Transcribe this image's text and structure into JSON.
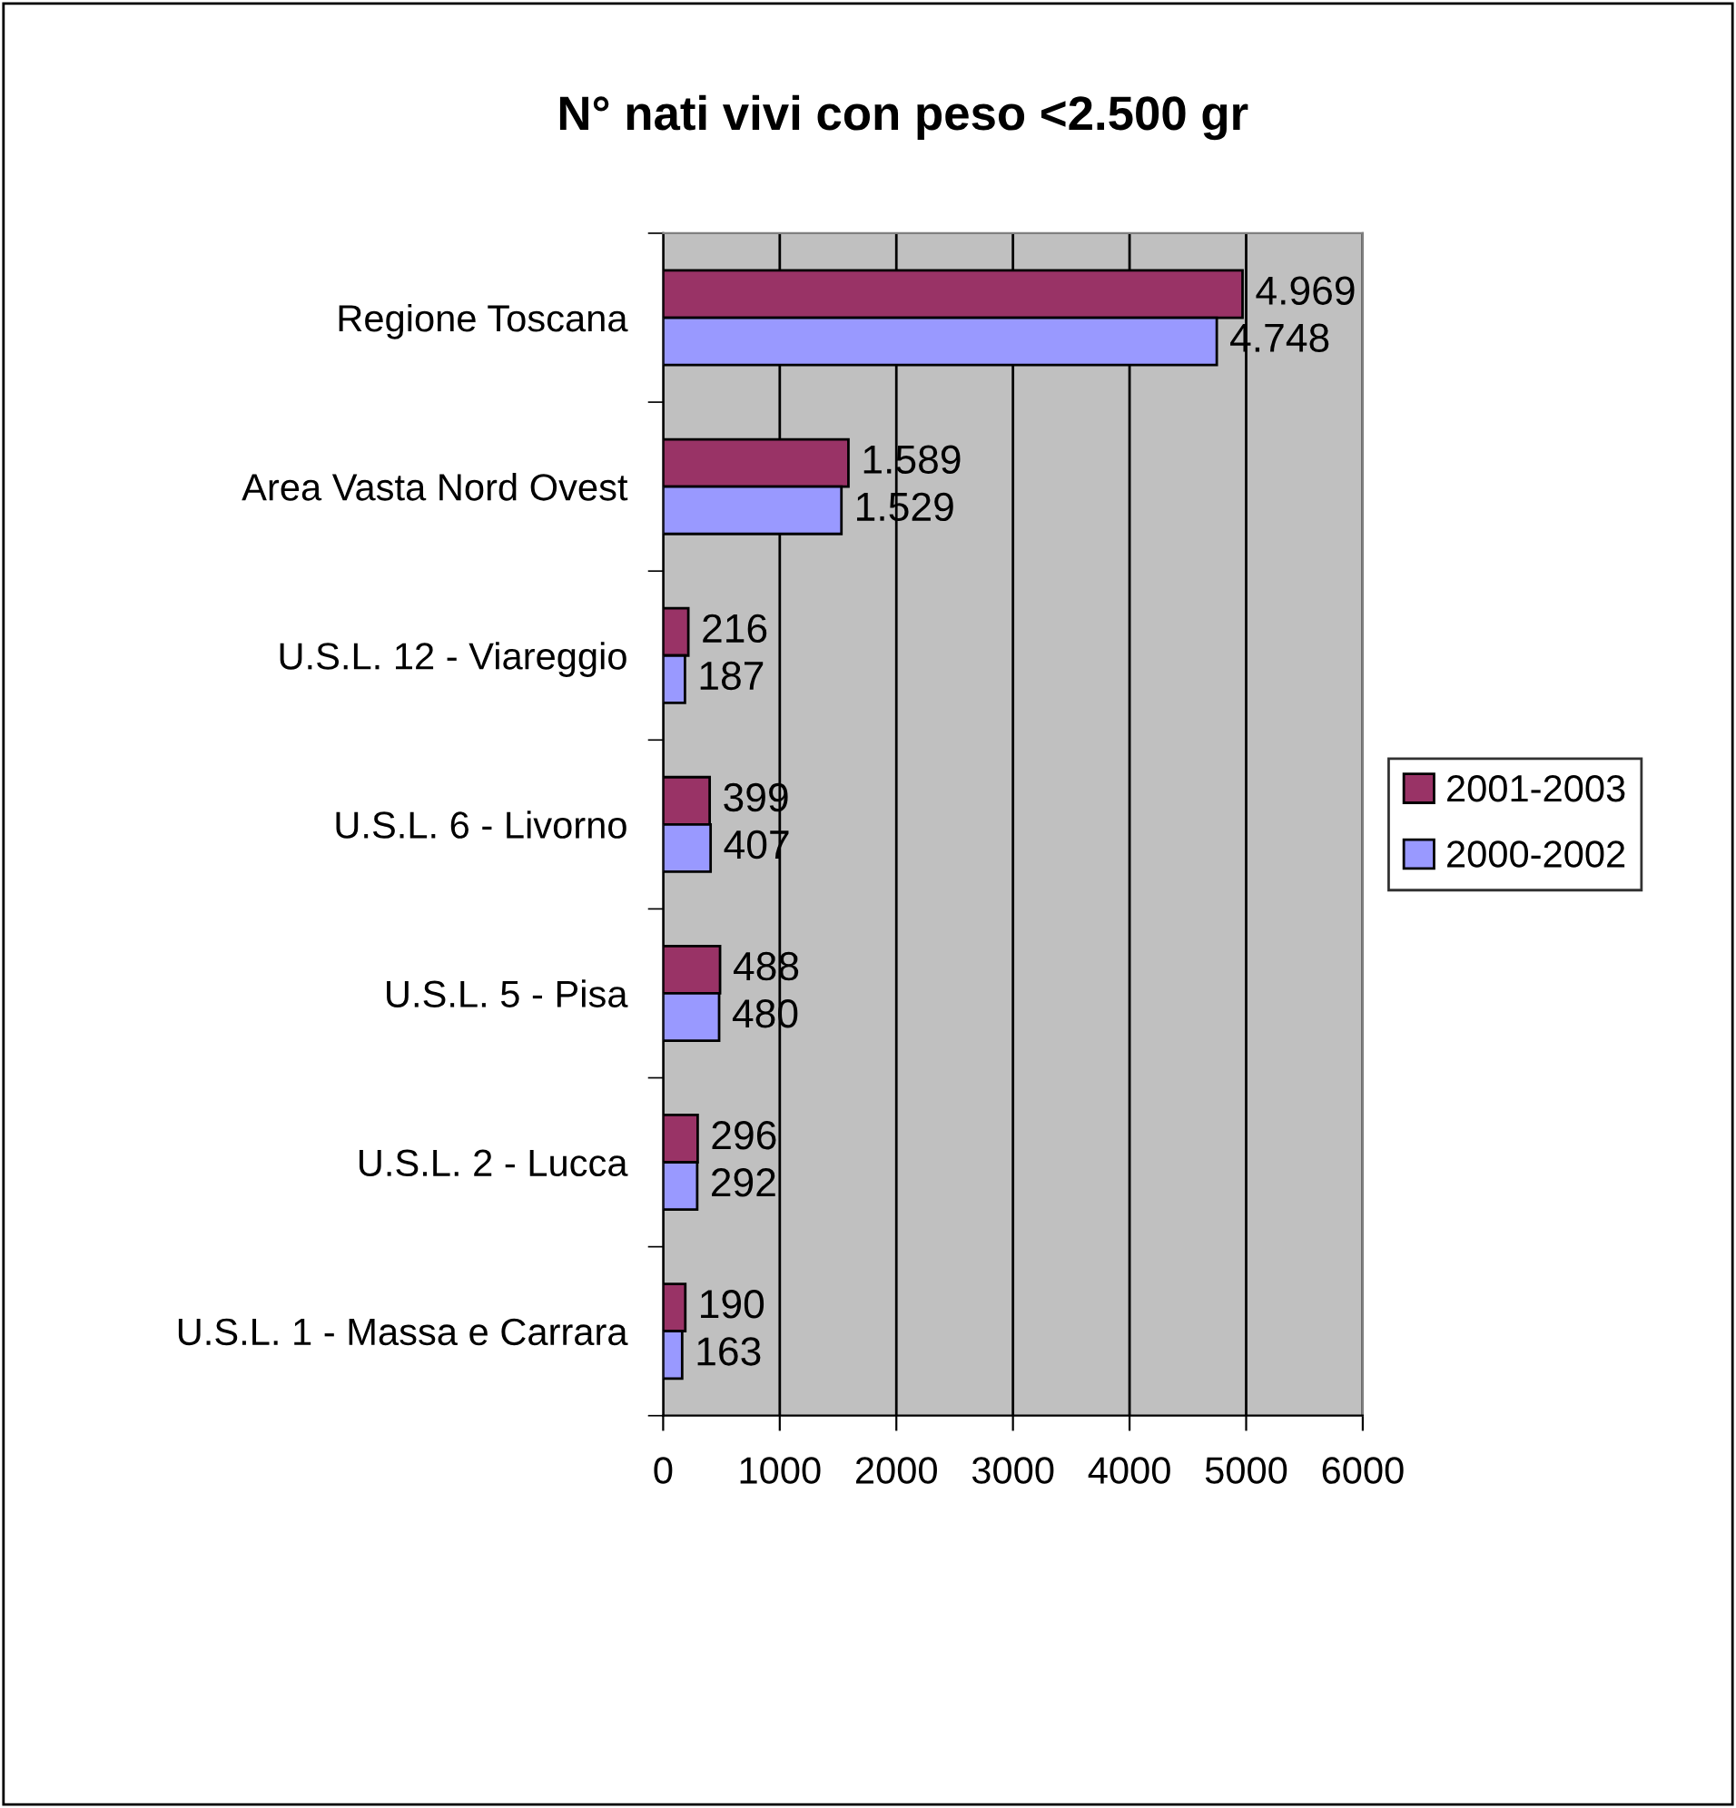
{
  "chart_data": {
    "type": "bar",
    "orientation": "horizontal",
    "title": "N° nati vivi con peso <2.500 gr",
    "categories": [
      "Regione Toscana",
      "Area Vasta Nord Ovest",
      "U.S.L. 12 - Viareggio",
      "U.S.L. 6 - Livorno",
      "U.S.L. 5 - Pisa",
      "U.S.L. 2 - Lucca",
      "U.S.L. 1 - Massa e Carrara"
    ],
    "series": [
      {
        "name": "2001-2003",
        "color": "#993366",
        "values": [
          4969,
          1589,
          216,
          399,
          488,
          296,
          190
        ],
        "value_labels": [
          "4.969",
          "1.589",
          "216",
          "399",
          "488",
          "296",
          "190"
        ]
      },
      {
        "name": "2000-2002",
        "color": "#9999ff",
        "values": [
          4748,
          1529,
          187,
          407,
          480,
          292,
          163
        ],
        "value_labels": [
          "4.748",
          "1.529",
          "187",
          "407",
          "480",
          "292",
          "163"
        ]
      }
    ],
    "xlim": [
      0,
      6000
    ],
    "xticks": [
      0,
      1000,
      2000,
      3000,
      4000,
      5000,
      6000
    ],
    "grid": "x",
    "legend": "right"
  }
}
